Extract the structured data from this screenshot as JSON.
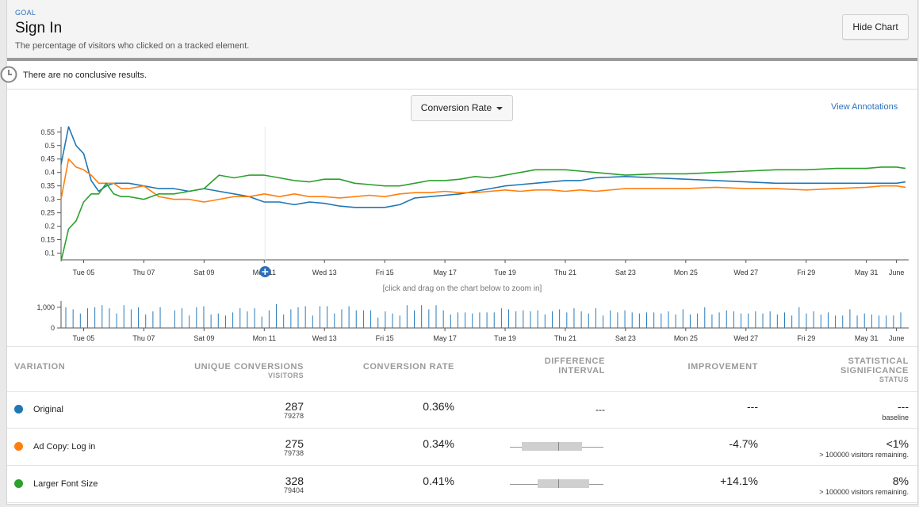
{
  "header": {
    "goal_label": "GOAL",
    "title": "Sign In",
    "description": "The percentage of visitors who clicked on a tracked element.",
    "hide_chart_label": "Hide Chart"
  },
  "status": {
    "message": "There are no conclusive results."
  },
  "chart_controls": {
    "metric_label": "Conversion Rate",
    "view_annotations_label": "View Annotations",
    "zoom_hint": "[click and drag on the chart below to zoom in]"
  },
  "colors": {
    "original": "#1f77b4",
    "ad_copy": "#ff7f0e",
    "larger_font": "#2ca02c",
    "link": "#2c6fbb"
  },
  "chart_data": [
    {
      "type": "line",
      "x_tick_labels": [
        "Tue 05",
        "Thu 07",
        "Sat 09",
        "Mon 11",
        "Wed 13",
        "Fri 15",
        "May 17",
        "Tue 19",
        "Thu 21",
        "Sat 23",
        "Mon 25",
        "Wed 27",
        "Fri 29",
        "May 31",
        "June"
      ],
      "y_ticks": [
        0.1,
        0.15,
        0.2,
        0.25,
        0.3,
        0.35,
        0.4,
        0.45,
        0.5,
        0.55
      ],
      "ylim": [
        0.075,
        0.57
      ],
      "x_day_range": [
        4.25,
        32.3
      ],
      "series": [
        {
          "name": "Original",
          "color": "#1f77b4",
          "x": [
            4.25,
            4.5,
            4.75,
            5.0,
            5.25,
            5.5,
            5.75,
            6.0,
            6.25,
            6.5,
            7.0,
            7.5,
            8.0,
            8.5,
            9.0,
            9.5,
            10.0,
            10.5,
            11.0,
            11.5,
            12.0,
            12.5,
            13.0,
            13.5,
            14.0,
            14.5,
            15.0,
            15.5,
            16.0,
            16.5,
            17.0,
            17.5,
            18.0,
            18.5,
            19.0,
            19.5,
            20.0,
            20.5,
            21.0,
            21.5,
            22.0,
            23.0,
            24.0,
            25.0,
            26.0,
            27.0,
            28.0,
            29.0,
            30.0,
            31.0,
            31.5,
            32.0,
            32.3
          ],
          "y": [
            0.43,
            0.57,
            0.5,
            0.47,
            0.37,
            0.33,
            0.35,
            0.36,
            0.36,
            0.36,
            0.35,
            0.34,
            0.34,
            0.33,
            0.34,
            0.33,
            0.32,
            0.31,
            0.29,
            0.29,
            0.28,
            0.29,
            0.285,
            0.275,
            0.27,
            0.27,
            0.27,
            0.28,
            0.305,
            0.31,
            0.315,
            0.32,
            0.33,
            0.34,
            0.35,
            0.355,
            0.36,
            0.365,
            0.37,
            0.37,
            0.38,
            0.385,
            0.38,
            0.375,
            0.37,
            0.365,
            0.36,
            0.36,
            0.36,
            0.36,
            0.36,
            0.36,
            0.365
          ]
        },
        {
          "name": "Ad Copy: Log in",
          "color": "#ff7f0e",
          "x": [
            4.25,
            4.5,
            4.75,
            5.0,
            5.25,
            5.5,
            5.75,
            6.0,
            6.25,
            6.5,
            7.0,
            7.5,
            8.0,
            8.5,
            9.0,
            9.5,
            10.0,
            10.5,
            11.0,
            11.5,
            12.0,
            12.5,
            13.0,
            13.5,
            14.0,
            14.5,
            15.0,
            15.5,
            16.0,
            16.5,
            17.0,
            17.5,
            18.0,
            18.5,
            19.0,
            19.5,
            20.0,
            20.5,
            21.0,
            21.5,
            22.0,
            23.0,
            24.0,
            25.0,
            26.0,
            27.0,
            28.0,
            29.0,
            30.0,
            31.0,
            31.5,
            32.0,
            32.3
          ],
          "y": [
            0.3,
            0.45,
            0.42,
            0.41,
            0.39,
            0.36,
            0.36,
            0.36,
            0.34,
            0.34,
            0.35,
            0.31,
            0.3,
            0.3,
            0.29,
            0.3,
            0.31,
            0.31,
            0.32,
            0.31,
            0.32,
            0.31,
            0.31,
            0.305,
            0.31,
            0.315,
            0.31,
            0.32,
            0.325,
            0.325,
            0.33,
            0.325,
            0.325,
            0.33,
            0.335,
            0.33,
            0.335,
            0.335,
            0.33,
            0.335,
            0.33,
            0.34,
            0.34,
            0.34,
            0.345,
            0.34,
            0.34,
            0.335,
            0.34,
            0.345,
            0.35,
            0.35,
            0.345
          ]
        },
        {
          "name": "Larger Font Size",
          "color": "#2ca02c",
          "x": [
            4.25,
            4.5,
            4.75,
            5.0,
            5.25,
            5.5,
            5.75,
            6.0,
            6.25,
            6.5,
            7.0,
            7.5,
            8.0,
            8.5,
            9.0,
            9.5,
            10.0,
            10.5,
            11.0,
            11.5,
            12.0,
            12.5,
            13.0,
            13.5,
            14.0,
            14.5,
            15.0,
            15.5,
            16.0,
            16.5,
            17.0,
            17.5,
            18.0,
            18.5,
            19.0,
            19.5,
            20.0,
            20.5,
            21.0,
            21.5,
            22.0,
            23.0,
            24.0,
            25.0,
            26.0,
            27.0,
            28.0,
            29.0,
            30.0,
            31.0,
            31.5,
            32.0,
            32.3
          ],
          "y": [
            0.07,
            0.19,
            0.22,
            0.29,
            0.32,
            0.32,
            0.36,
            0.32,
            0.31,
            0.31,
            0.3,
            0.32,
            0.32,
            0.33,
            0.34,
            0.39,
            0.38,
            0.39,
            0.39,
            0.38,
            0.37,
            0.365,
            0.375,
            0.375,
            0.36,
            0.355,
            0.35,
            0.35,
            0.36,
            0.37,
            0.37,
            0.375,
            0.385,
            0.38,
            0.39,
            0.4,
            0.41,
            0.41,
            0.41,
            0.405,
            0.4,
            0.39,
            0.395,
            0.395,
            0.4,
            0.405,
            0.41,
            0.41,
            0.415,
            0.415,
            0.42,
            0.42,
            0.415
          ]
        }
      ]
    },
    {
      "type": "bar",
      "x_tick_labels": [
        "Tue 05",
        "Thu 07",
        "Sat 09",
        "Mon 11",
        "Wed 13",
        "Fri 15",
        "May 17",
        "Tue 19",
        "Thu 21",
        "Sat 23",
        "Mon 25",
        "Wed 27",
        "Fri 29",
        "May 31",
        "June"
      ],
      "y_ticks": [
        0,
        1000
      ],
      "y_tick_labels": [
        "0",
        "1,000"
      ],
      "ylim": [
        0,
        1300
      ],
      "values": [
        1000,
        900,
        700,
        950,
        1000,
        1100,
        950,
        700,
        1100,
        900,
        1000,
        650,
        800,
        1000,
        0,
        850,
        950,
        600,
        1000,
        1050,
        650,
        700,
        600,
        750,
        950,
        800,
        950,
        550,
        850,
        1150,
        650,
        900,
        1000,
        1050,
        600,
        1050,
        1050,
        700,
        900,
        1050,
        850,
        850,
        850,
        500,
        800,
        700,
        600,
        1100,
        850,
        1100,
        900,
        1100,
        850,
        650,
        750,
        750,
        700,
        750,
        750,
        750,
        950,
        900,
        800,
        850,
        800,
        850,
        650,
        800,
        900,
        750,
        950,
        800,
        700,
        950,
        600,
        850,
        750,
        850,
        750,
        700,
        750,
        750,
        700,
        800,
        650,
        900,
        650,
        700,
        1000,
        650,
        750,
        850,
        800,
        700,
        700,
        800,
        700,
        800,
        650,
        750,
        600,
        1000,
        700,
        800,
        650,
        750,
        600,
        600,
        900,
        600,
        700,
        650,
        600,
        600,
        600,
        750
      ]
    }
  ],
  "table": {
    "headers": {
      "variation": "VARIATION",
      "unique_conversions": "UNIQUE CONVERSIONS",
      "visitors": "VISITORS",
      "conversion_rate": "CONVERSION RATE",
      "difference_line1": "DIFFERENCE",
      "difference_line2": "INTERVAL",
      "improvement": "IMPROVEMENT",
      "significance_line1": "STATISTICAL",
      "significance_line2": "SIGNIFICANCE",
      "status": "STATUS"
    },
    "rows": [
      {
        "name": "Original",
        "conversions": "287",
        "visitors": "79278",
        "rate": "0.36%",
        "difference": "---",
        "improvement": "---",
        "significance": "---",
        "significance_note": "baseline",
        "interval_low": 0,
        "interval_mid": 0,
        "interval_high": 0
      },
      {
        "name": "Ad Copy: Log in",
        "conversions": "275",
        "visitors": "79738",
        "rate": "0.34%",
        "difference": "",
        "improvement": "-4.7%",
        "significance": "<1%",
        "significance_note": "> 100000 visitors remaining.",
        "interval_low": 0.13,
        "interval_mid": 0.52,
        "interval_high": 0.77
      },
      {
        "name": "Larger Font Size",
        "conversions": "328",
        "visitors": "79404",
        "rate": "0.41%",
        "difference": "",
        "improvement": "+14.1%",
        "significance": "8%",
        "significance_note": "> 100000 visitors remaining.",
        "interval_low": 0.3,
        "interval_mid": 0.52,
        "interval_high": 0.85
      }
    ]
  }
}
